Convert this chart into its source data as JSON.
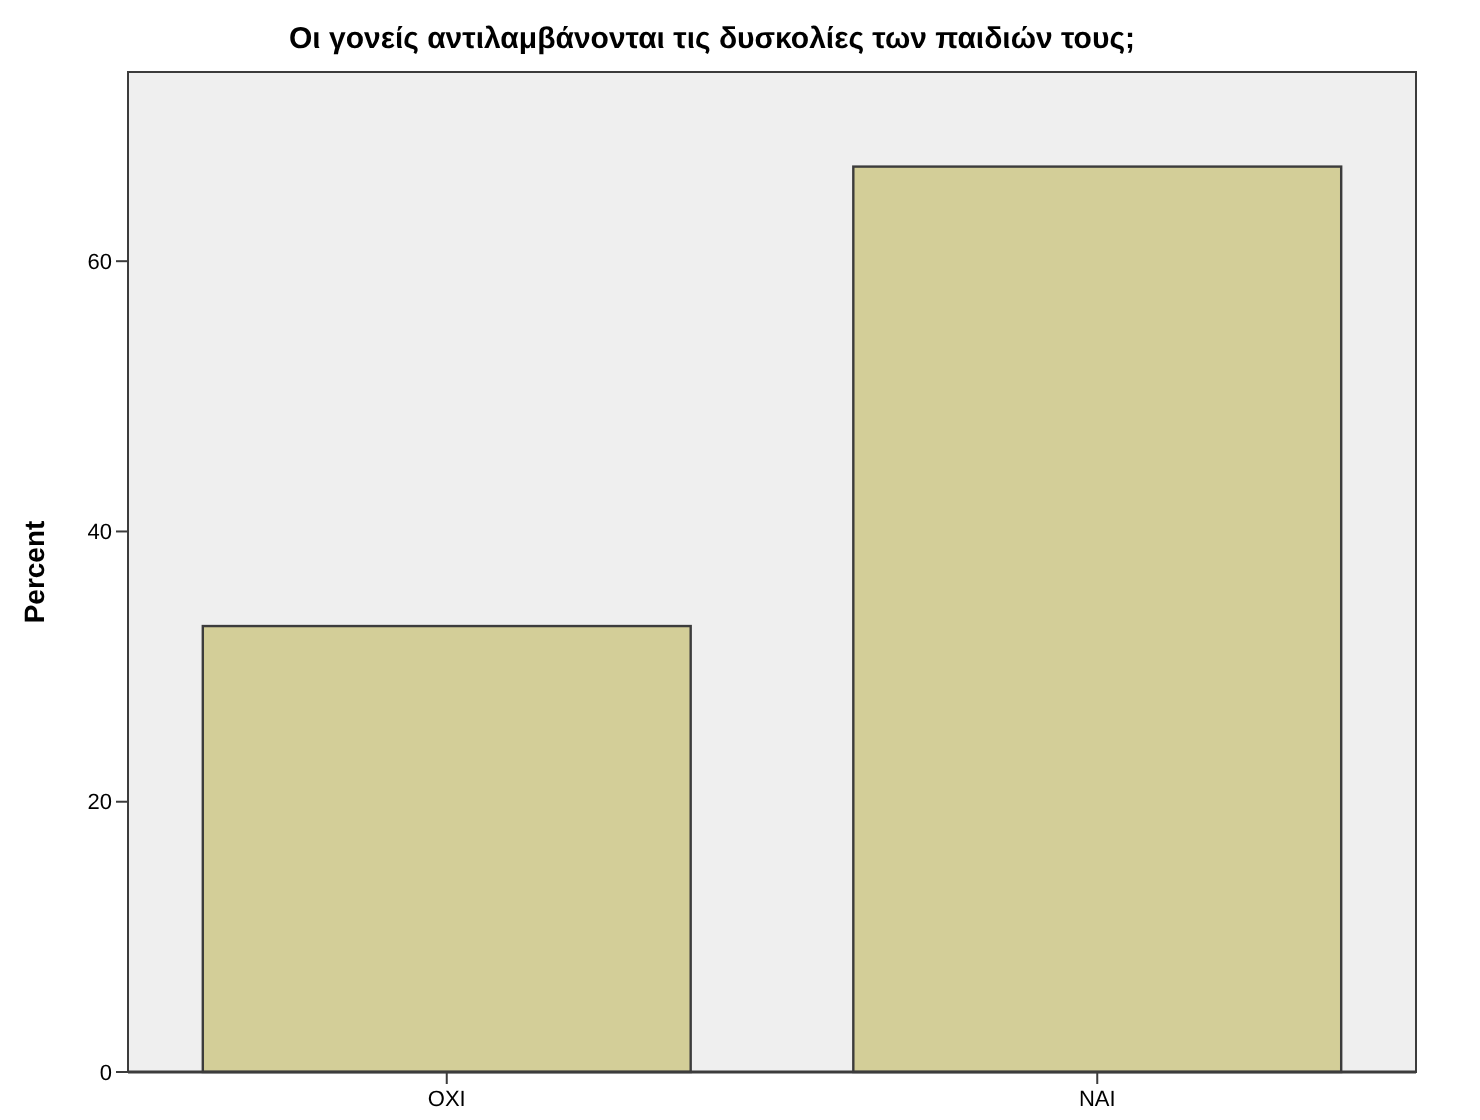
{
  "chart_data": {
    "type": "bar",
    "title": "Οι γονείς αντιλαμβάνονται τις δυσκολίες των παιδιών τους;",
    "ylabel": "Percent",
    "categories": [
      "OXI",
      "NAI"
    ],
    "values": [
      33,
      67
    ],
    "color": "#d3ce98",
    "ylim": [
      0,
      74
    ],
    "yticks": [
      0,
      20,
      40,
      60
    ],
    "grid": false
  }
}
